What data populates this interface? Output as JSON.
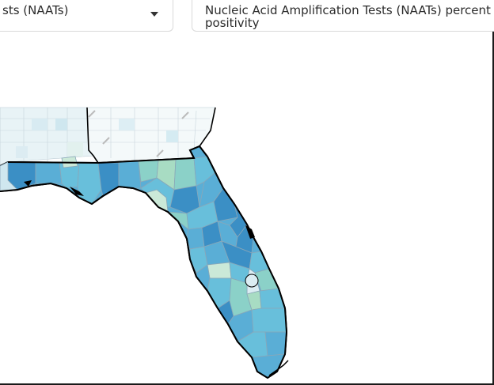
{
  "metric_dropdown": {
    "selected": "sts (NAATs)",
    "icon": "chevron-down-icon"
  },
  "metric_label": {
    "text": "Nucleic Acid Amplification Tests (NAATs) percent positivity"
  },
  "map": {
    "region": "Florida",
    "colors": {
      "very_low": "#f1f7f8",
      "low": "#dcedf3",
      "light_green": "#cbe9d8",
      "green": "#a8dcc3",
      "teal": "#8bd1c8",
      "mid_blue": "#68bfdb",
      "blue": "#5aaed6",
      "dark_blue": "#3b8fc5",
      "border": "#000000",
      "county_line": "#9fb6c4"
    }
  }
}
